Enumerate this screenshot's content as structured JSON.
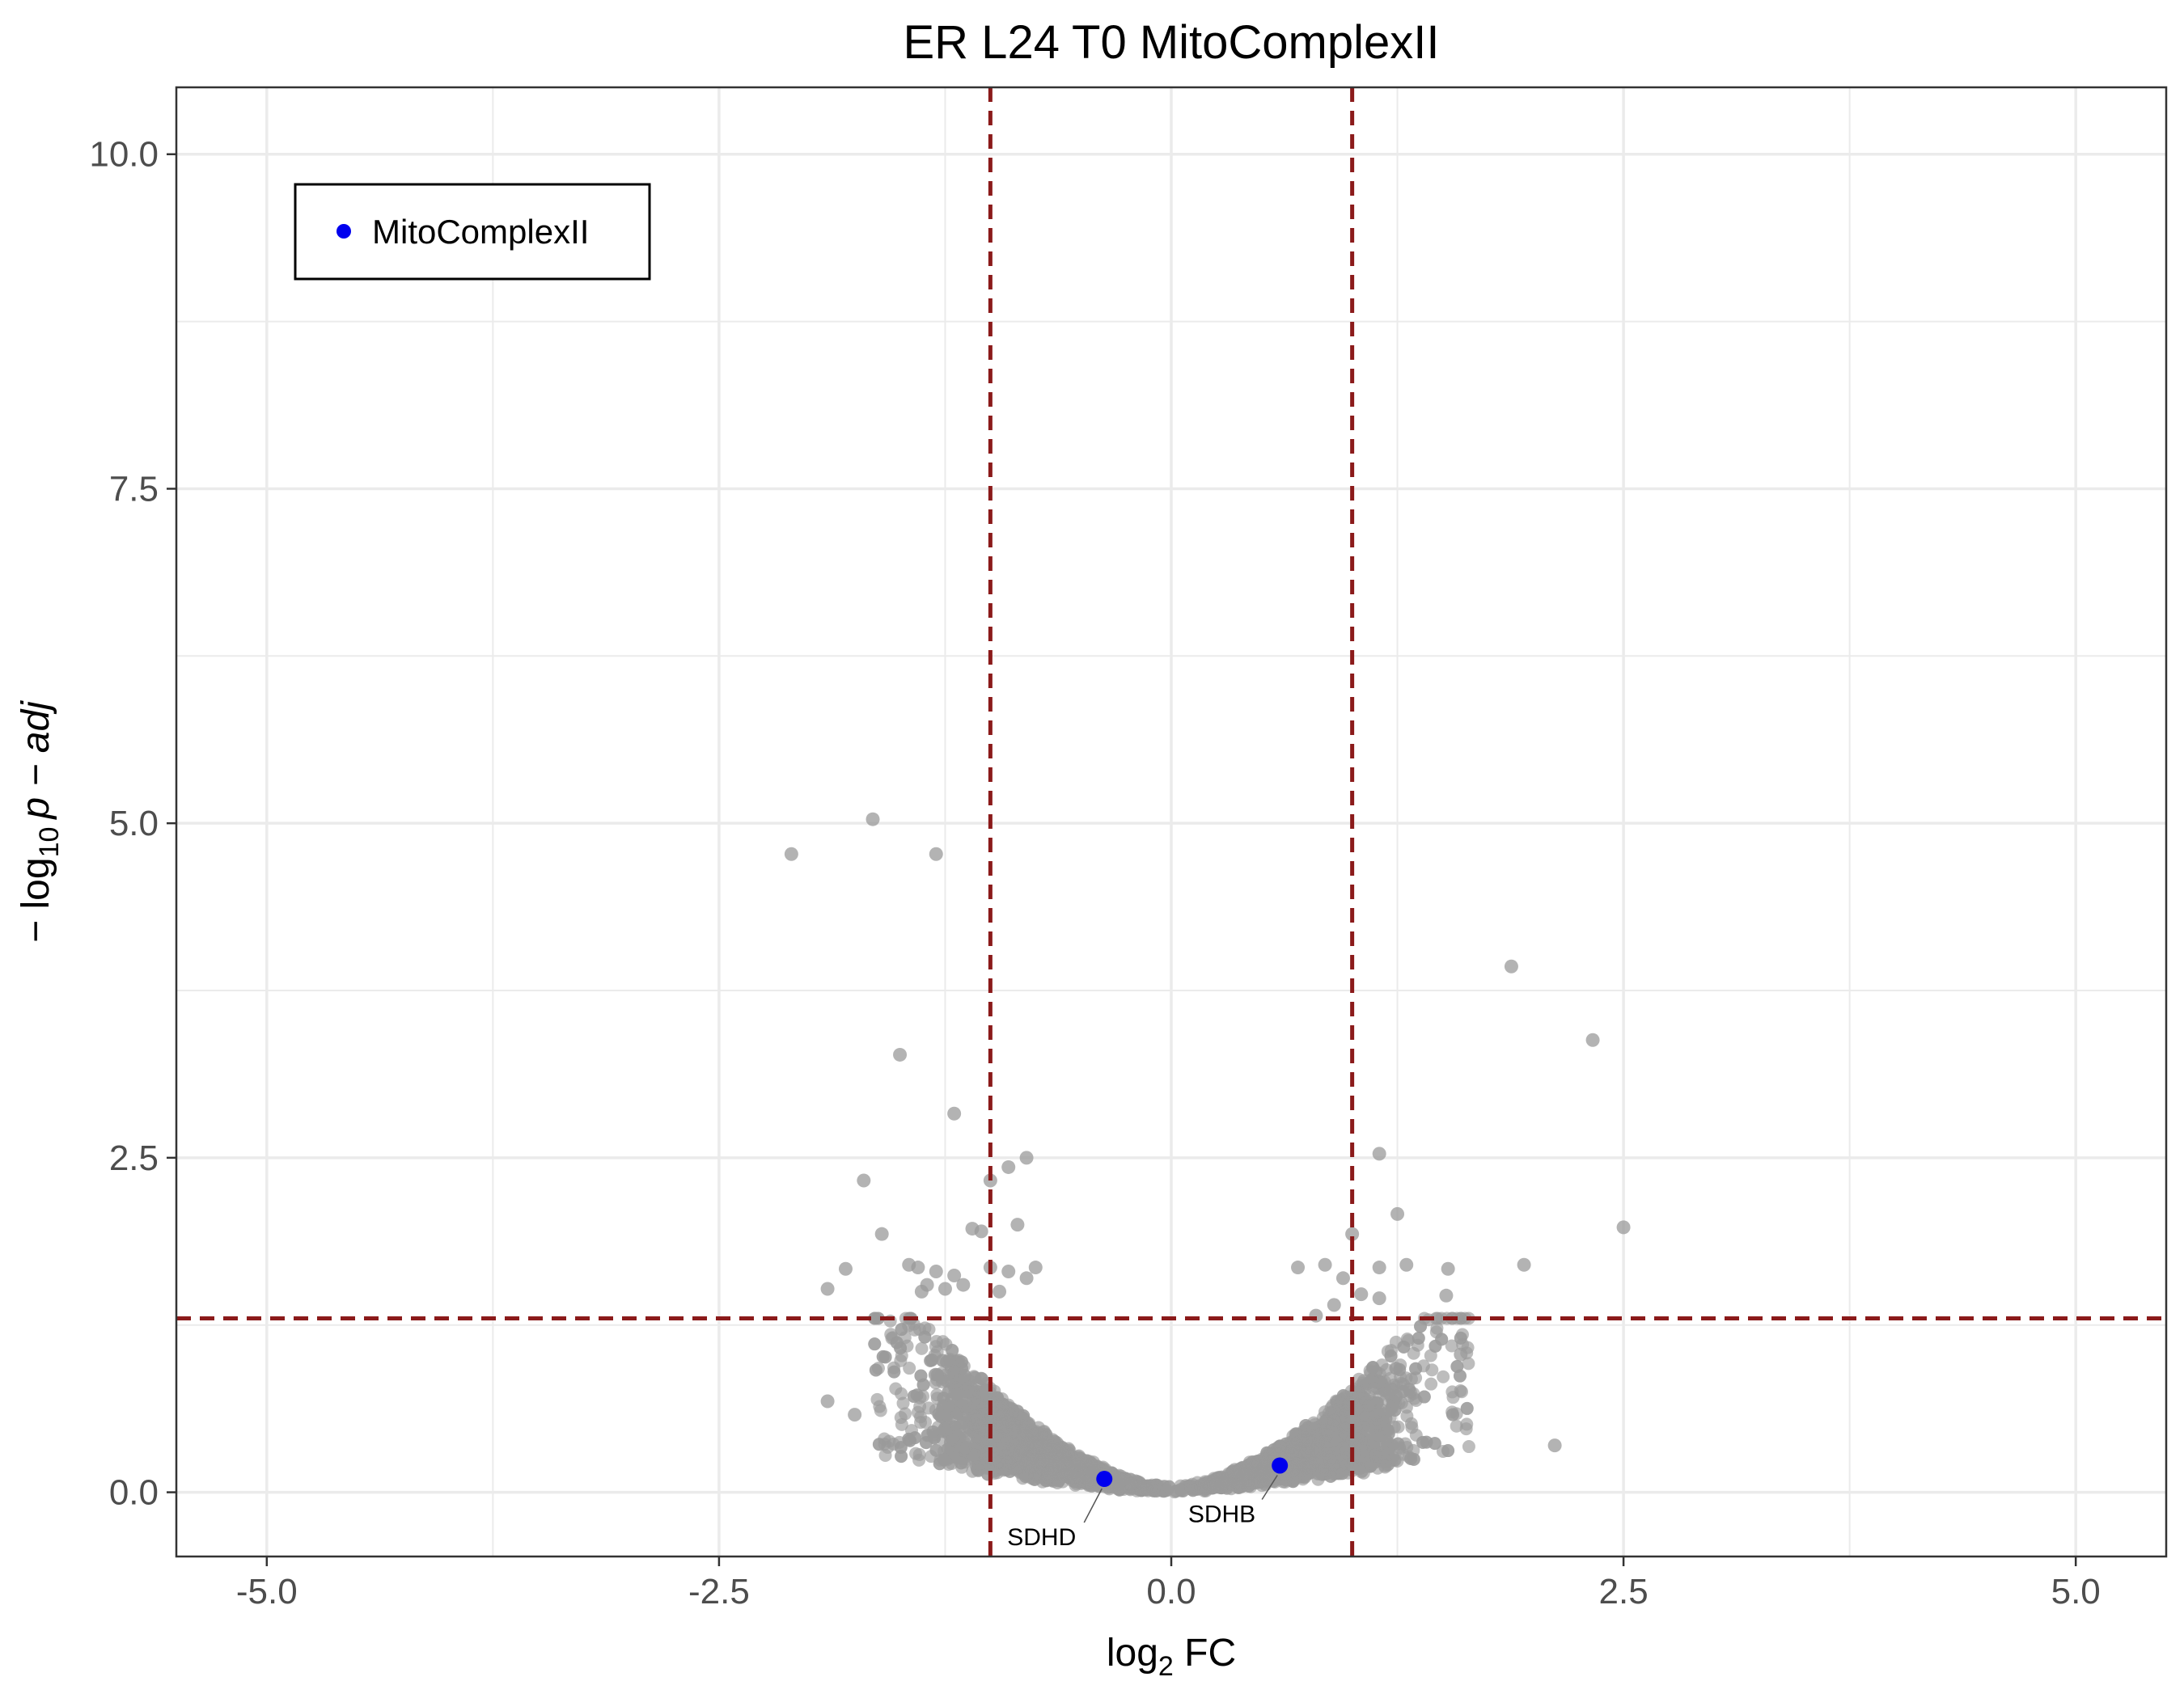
{
  "chart_data": {
    "type": "scatter",
    "title": "ER L24 T0 MitoComplexII",
    "xlabel": {
      "main": "log",
      "sub": "2",
      "rest": " FC"
    },
    "ylabel": {
      "prefix": "− log",
      "sub": "10",
      "rest": "p − adj"
    },
    "xlim": [
      -5.5,
      5.5
    ],
    "ylim": [
      -0.48,
      10.5
    ],
    "x_ticks": [
      -5,
      -2.5,
      0,
      2.5,
      5
    ],
    "x_tick_labels": [
      "-5.0",
      "-2.5",
      "0.0",
      "2.5",
      "5.0"
    ],
    "y_ticks": [
      0,
      2.5,
      5,
      7.5,
      10
    ],
    "y_tick_labels": [
      "0.0",
      "2.5",
      "5.0",
      "7.5",
      "10.0"
    ],
    "grid": true,
    "threshold_lines": {
      "vertical": [
        -1,
        1
      ],
      "horizontal": 1.3,
      "color": "#8b1a1a",
      "style": "dashed"
    },
    "colors": {
      "background_points": "#999999",
      "highlight": "#0000ee",
      "panel_border": "#333333",
      "grid": "#ebebeb"
    },
    "legend": {
      "position": "top-left",
      "entries": [
        "MitoComplexII"
      ]
    },
    "highlighted_series": {
      "name": "MitoComplexII",
      "points": [
        {
          "label": "SDHD",
          "x": -0.37,
          "y": 0.1
        },
        {
          "label": "SDHB",
          "x": 0.6,
          "y": 0.2
        }
      ]
    },
    "background_points": [
      {
        "x": -1.65,
        "y": 5.03
      },
      {
        "x": -2.1,
        "y": 4.77
      },
      {
        "x": -1.3,
        "y": 4.77
      },
      {
        "x": -1.5,
        "y": 3.27
      },
      {
        "x": -1.2,
        "y": 2.83
      },
      {
        "x": -1.7,
        "y": 2.33
      },
      {
        "x": -0.8,
        "y": 2.5
      },
      {
        "x": -0.9,
        "y": 2.43
      },
      {
        "x": -1.0,
        "y": 2.33
      },
      {
        "x": -1.6,
        "y": 1.93
      },
      {
        "x": -1.1,
        "y": 1.97
      },
      {
        "x": -0.85,
        "y": 2.0
      },
      {
        "x": -1.05,
        "y": 1.95
      },
      {
        "x": -1.45,
        "y": 1.7
      },
      {
        "x": -1.4,
        "y": 1.68
      },
      {
        "x": -1.3,
        "y": 1.65
      },
      {
        "x": -1.2,
        "y": 1.62
      },
      {
        "x": -1.0,
        "y": 1.68
      },
      {
        "x": -0.9,
        "y": 1.65
      },
      {
        "x": -0.75,
        "y": 1.68
      },
      {
        "x": -0.8,
        "y": 1.6
      },
      {
        "x": -1.8,
        "y": 1.67
      },
      {
        "x": -1.9,
        "y": 1.52
      },
      {
        "x": -1.25,
        "y": 1.52
      },
      {
        "x": -1.35,
        "y": 1.55
      },
      {
        "x": -1.15,
        "y": 1.55
      },
      {
        "x": -0.95,
        "y": 1.5
      },
      {
        "x": -1.38,
        "y": 1.5
      },
      {
        "x": 1.88,
        "y": 3.93
      },
      {
        "x": 2.33,
        "y": 3.38
      },
      {
        "x": 1.15,
        "y": 2.53
      },
      {
        "x": 1.25,
        "y": 2.08
      },
      {
        "x": 2.5,
        "y": 1.98
      },
      {
        "x": 1.0,
        "y": 1.93
      },
      {
        "x": 1.95,
        "y": 1.7
      },
      {
        "x": 1.3,
        "y": 1.7
      },
      {
        "x": 1.15,
        "y": 1.68
      },
      {
        "x": 1.53,
        "y": 1.67
      },
      {
        "x": 0.7,
        "y": 1.68
      },
      {
        "x": 0.85,
        "y": 1.7
      },
      {
        "x": 0.95,
        "y": 1.6
      },
      {
        "x": 1.05,
        "y": 1.48
      },
      {
        "x": 1.52,
        "y": 1.47
      },
      {
        "x": 1.15,
        "y": 1.45
      },
      {
        "x": 0.9,
        "y": 1.4
      },
      {
        "x": 0.8,
        "y": 1.32
      },
      {
        "x": 2.12,
        "y": 0.35
      },
      {
        "x": 1.6,
        "y": 1.03
      },
      {
        "x": -1.9,
        "y": 0.68
      },
      {
        "x": -1.75,
        "y": 0.58
      }
    ],
    "background_cloud_count": 3400
  }
}
